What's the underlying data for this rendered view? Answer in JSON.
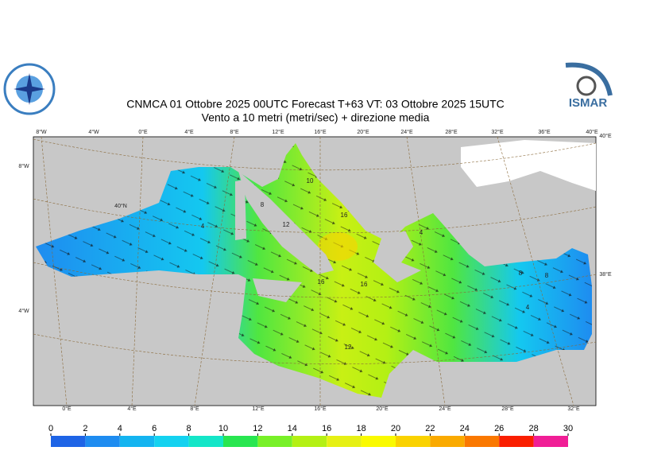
{
  "header": {
    "title": "CNMCA 01  Ottobre  2025 00UTC Forecast T+63 VT: 03  Ottobre  2025 15UTC",
    "subtitle": "Vento a 10 metri (metri/sec) + direzione media",
    "logo_text": "ISMAR"
  },
  "map": {
    "top_labels": [
      "8°W",
      "4°W",
      "0°E",
      "4°E",
      "8°E",
      "12°E",
      "16°E",
      "20°E",
      "24°E",
      "28°E",
      "32°E",
      "36°E",
      "40°E"
    ],
    "bottom_labels": [
      "0°E",
      "4°E",
      "8°E",
      "12°E",
      "16°E",
      "20°E",
      "24°E",
      "28°E",
      "32°E"
    ],
    "left_labels": [
      "8°W",
      "40°N",
      "4°W"
    ],
    "right_labels": [
      "40°E",
      "38°E"
    ],
    "contour_labels": [
      "8",
      "12",
      "10",
      "16",
      "4",
      "16",
      "16",
      "12",
      "4",
      "8",
      "8",
      "4"
    ]
  },
  "colorbar": {
    "ticks": [
      0,
      2,
      4,
      6,
      8,
      10,
      12,
      14,
      16,
      18,
      20,
      22,
      24,
      26,
      28,
      30
    ],
    "colors": [
      "#1e64e6",
      "#1e8cf0",
      "#14b4f0",
      "#14d2f0",
      "#14e6c8",
      "#28e650",
      "#78f028",
      "#b4f014",
      "#e6f014",
      "#fafa00",
      "#fad200",
      "#faaa00",
      "#fa7800",
      "#fa1e00",
      "#f01e96"
    ]
  }
}
